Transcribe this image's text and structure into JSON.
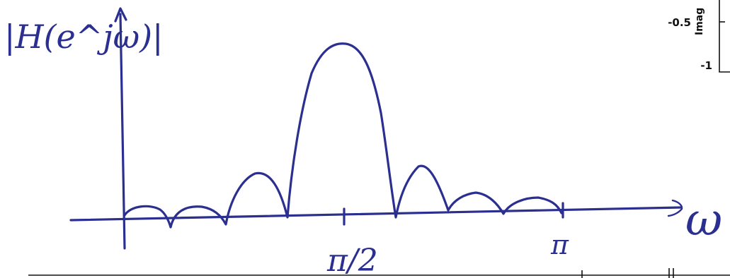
{
  "sketch": {
    "ylabel": "|H(e^jω)|",
    "xlabel": "ω",
    "xtick_mid": "π/2",
    "xtick_end": "π"
  },
  "inset": {
    "ylabel_fragment": "Imag",
    "ticks": [
      "-0.5",
      "-1"
    ]
  }
}
